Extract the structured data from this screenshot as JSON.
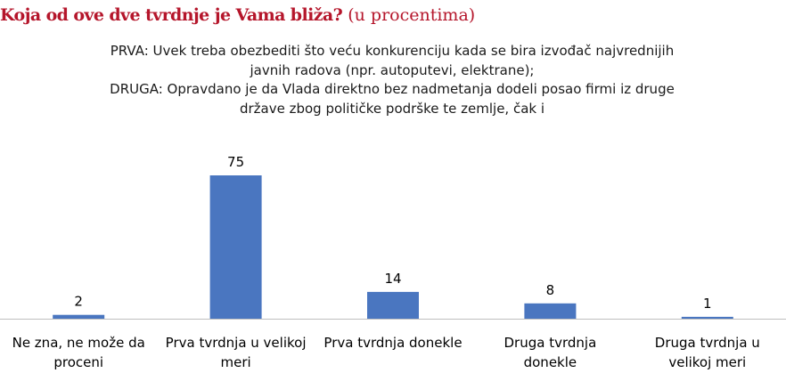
{
  "heading": {
    "title": "Koja od ove dve tvrdnje je Vama bliža?",
    "suffix": "(u procentima)"
  },
  "subtitle_lines": [
    "PRVA: Uvek treba obezbediti što veću konkurenciju kada se bira izvođač najvrednijih",
    "javnih radova (npr. autoputevi, elektrane);",
    "DRUGA: Opravdano je da Vlada direktno bez nadmetanja dodeli posao firmi iz druge",
    "države zbog političke podrške te zemlje, čak i"
  ],
  "chart_data": {
    "type": "bar",
    "categories": [
      [
        "Ne zna, ne može da",
        "proceni"
      ],
      [
        "Prva tvrdnja u velikoj",
        "meri"
      ],
      [
        "Prva tvrdnja donekle"
      ],
      [
        "Druga tvrdnja",
        "donekle"
      ],
      [
        "Druga tvrdnja u",
        "velikoj meri"
      ]
    ],
    "values": [
      2,
      75,
      14,
      8,
      1
    ],
    "ylim": [
      0,
      75
    ],
    "grid": false,
    "legend": "none",
    "bar_color": "#4a76c0",
    "axis_color": "#bfbfbf"
  }
}
